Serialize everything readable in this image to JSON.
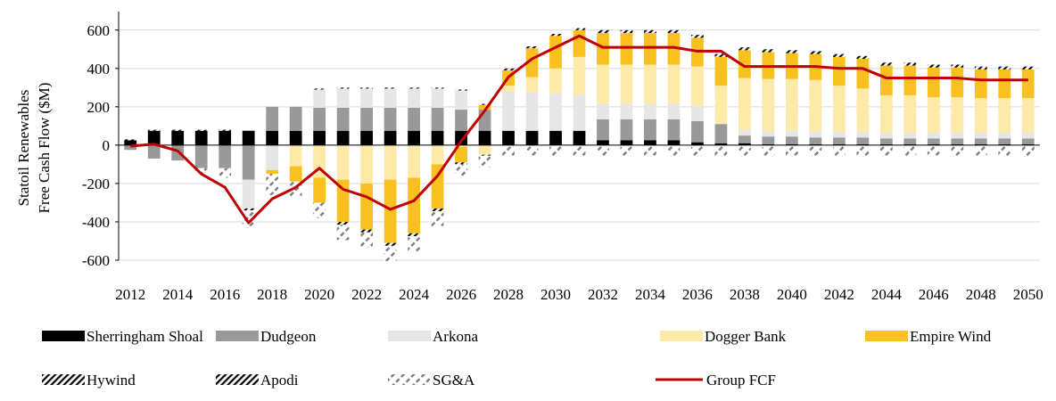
{
  "chart_data": {
    "type": "bar",
    "stacked": true,
    "title": "",
    "ylabel_lines": [
      "Statoil Renewables",
      "Free Cash Flow ($M)"
    ],
    "xlabel": "",
    "ylim": [
      -600,
      700
    ],
    "yticks": [
      600,
      400,
      200,
      0,
      -200,
      -400,
      -600
    ],
    "ytick_labels": [
      "600",
      "400",
      "200",
      "0",
      "-200",
      "-400",
      "-600"
    ],
    "xtick_labels": [
      "2012",
      "2014",
      "2016",
      "2018",
      "2020",
      "2022",
      "2024",
      "2026",
      "2028",
      "2030",
      "2032",
      "2034",
      "2036",
      "2038",
      "2040",
      "2042",
      "2044",
      "2046",
      "2048",
      "2050"
    ],
    "grid": "horizontal",
    "legend_position": "bottom",
    "categories": [
      2012,
      2013,
      2014,
      2015,
      2016,
      2017,
      2018,
      2019,
      2020,
      2021,
      2022,
      2023,
      2024,
      2025,
      2026,
      2027,
      2028,
      2029,
      2030,
      2031,
      2032,
      2033,
      2034,
      2035,
      2036,
      2037,
      2038,
      2039,
      2040,
      2041,
      2042,
      2043,
      2044,
      2045,
      2046,
      2047,
      2048,
      2049,
      2050
    ],
    "series": [
      {
        "name": "Sherringham Shoal",
        "color": "#000000",
        "pattern": "solid",
        "values": [
          25,
          75,
          75,
          75,
          75,
          75,
          75,
          75,
          75,
          75,
          75,
          75,
          75,
          75,
          75,
          75,
          75,
          75,
          75,
          75,
          25,
          25,
          25,
          25,
          15,
          10,
          10,
          5,
          5,
          5,
          5,
          5,
          5,
          5,
          5,
          5,
          5,
          5,
          5
        ]
      },
      {
        "name": "Dudgeon",
        "color": "#999999",
        "pattern": "solid",
        "values": [
          -25,
          -70,
          -80,
          -120,
          -120,
          -180,
          125,
          125,
          120,
          120,
          120,
          120,
          120,
          120,
          110,
          110,
          0,
          0,
          0,
          0,
          110,
          110,
          110,
          110,
          110,
          100,
          40,
          40,
          40,
          35,
          35,
          35,
          30,
          30,
          30,
          30,
          30,
          30,
          30
        ]
      },
      {
        "name": "Arkona",
        "color": "#e6e6e6",
        "pattern": "solid",
        "values": [
          0,
          0,
          0,
          0,
          0,
          -150,
          -130,
          0,
          95,
          100,
          100,
          100,
          100,
          100,
          100,
          0,
          205,
          200,
          195,
          190,
          80,
          80,
          80,
          80,
          80,
          0,
          30,
          30,
          30,
          30,
          30,
          30,
          30,
          30,
          30,
          30,
          30,
          30,
          30
        ]
      },
      {
        "name": "Dogger Bank",
        "color": "#fde9a8",
        "pattern": "solid",
        "values": [
          0,
          0,
          0,
          0,
          0,
          0,
          0,
          -110,
          -170,
          -180,
          -200,
          -180,
          -170,
          -100,
          -10,
          -50,
          30,
          80,
          130,
          195,
          205,
          205,
          205,
          205,
          205,
          200,
          270,
          270,
          270,
          270,
          240,
          225,
          195,
          195,
          185,
          185,
          180,
          180,
          180
        ]
      },
      {
        "name": "Empire Wind",
        "color": "#f9c11f",
        "pattern": "solid",
        "values": [
          0,
          0,
          0,
          0,
          0,
          0,
          -20,
          -80,
          -130,
          -220,
          -240,
          -330,
          -290,
          -230,
          -80,
          25,
          80,
          150,
          170,
          140,
          165,
          165,
          165,
          165,
          150,
          150,
          145,
          140,
          135,
          135,
          150,
          155,
          155,
          155,
          155,
          155,
          150,
          150,
          150
        ]
      },
      {
        "name": "Hywind",
        "color": "#000000",
        "pattern": "hatch",
        "values": [
          5,
          5,
          5,
          5,
          5,
          -10,
          0,
          0,
          0,
          -15,
          -15,
          -15,
          -15,
          -15,
          -10,
          -5,
          5,
          5,
          5,
          5,
          10,
          10,
          10,
          10,
          10,
          10,
          10,
          10,
          10,
          10,
          10,
          10,
          10,
          10,
          10,
          10,
          10,
          10,
          10
        ]
      },
      {
        "name": "Apodi",
        "color": "#000000",
        "pattern": "hatch",
        "values": [
          0,
          0,
          0,
          0,
          0,
          0,
          0,
          0,
          5,
          5,
          5,
          5,
          5,
          5,
          5,
          5,
          5,
          5,
          5,
          5,
          5,
          5,
          5,
          5,
          5,
          5,
          5,
          5,
          5,
          5,
          5,
          5,
          5,
          5,
          5,
          5,
          5,
          5,
          5
        ]
      },
      {
        "name": "SG&A",
        "color": "#808080",
        "pattern": "dash",
        "values": [
          0,
          0,
          0,
          -30,
          -50,
          -90,
          -110,
          -80,
          -80,
          -80,
          -80,
          -80,
          -80,
          -80,
          -60,
          -60,
          -60,
          -60,
          -60,
          -60,
          -60,
          -60,
          -60,
          -60,
          -60,
          -60,
          -60,
          -60,
          -60,
          -60,
          -60,
          -60,
          -60,
          -60,
          -60,
          -60,
          -60,
          -60,
          -60
        ]
      }
    ],
    "line": {
      "name": "Group FCF",
      "color": "#c00000",
      "values": [
        -5,
        5,
        -30,
        -150,
        -220,
        -405,
        -280,
        -220,
        -120,
        -230,
        -270,
        -335,
        -290,
        -160,
        20,
        180,
        355,
        450,
        510,
        570,
        510,
        510,
        510,
        510,
        490,
        490,
        410,
        410,
        410,
        410,
        400,
        400,
        350,
        350,
        350,
        350,
        340,
        340,
        340
      ]
    }
  }
}
